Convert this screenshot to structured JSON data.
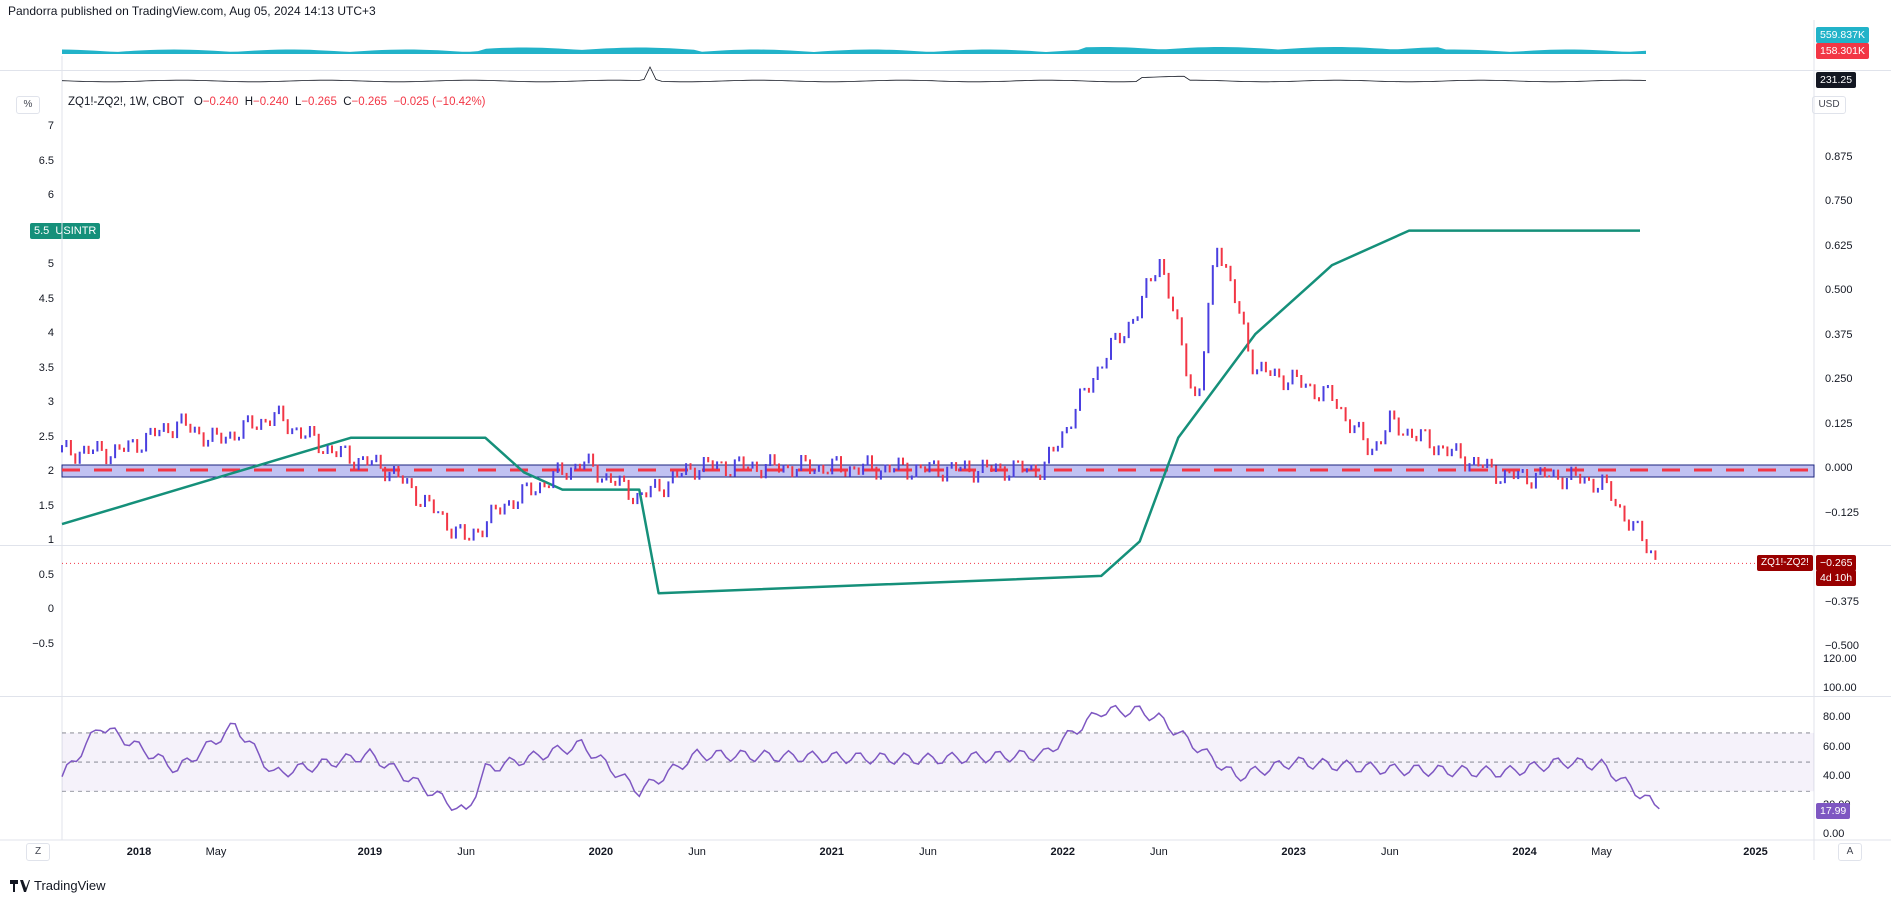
{
  "header": {
    "publisher_line": "Pandorra published on TradingView.com, Aug 05, 2024 14:13 UTC+3"
  },
  "symbol_line": {
    "name": "ZQ1!-ZQ2!, 1W, CBOT",
    "o_label": "O",
    "o": "−0.240",
    "h_label": "H",
    "h": "−0.240",
    "l_label": "L",
    "l": "−0.265",
    "c_label": "C",
    "c": "−0.265",
    "change": "−0.025 (−10.42%)"
  },
  "currency": "USD",
  "percent_btn": "%",
  "left_axis_ticks": [
    "7",
    "6.5",
    "6",
    "5.5",
    "5",
    "4.5",
    "4",
    "3.5",
    "3",
    "2.5",
    "2",
    "1.5",
    "1",
    "0.5",
    "0",
    "−0.5"
  ],
  "usintr_tag": {
    "value": "5.5",
    "label": "USINTR"
  },
  "right_axis_ticks": [
    "0.875",
    "0.750",
    "0.625",
    "0.500",
    "0.375",
    "0.250",
    "0.125",
    "0.000",
    "−0.125",
    "−0.375",
    "−0.500"
  ],
  "price_tag": {
    "symbol": "ZQ1!-ZQ2!",
    "value": "−0.265",
    "countdown": "4d 10h"
  },
  "volume_tags": {
    "v1": "559.837K",
    "v2": "158.301K",
    "v3": "231.25"
  },
  "rsi_axis_ticks": [
    "120.00",
    "100.00",
    "80.00",
    "60.00",
    "40.00",
    "20.00",
    "0.00"
  ],
  "rsi_tag": "17.99",
  "x_axis": [
    "2018",
    "May",
    "2019",
    "Jun",
    "2020",
    "Jun",
    "2021",
    "Jun",
    "2022",
    "Jun",
    "2023",
    "Jun",
    "2024",
    "May",
    "2025"
  ],
  "x_axis_bold": [
    "2018",
    "2019",
    "2020",
    "2021",
    "2022",
    "2023",
    "2024",
    "2025"
  ],
  "corner_left": "Z",
  "corner_right": "A",
  "footer": "TradingView",
  "colors": {
    "up": "#4a3fe0",
    "down": "#f23645",
    "usintr": "#15907a",
    "rsi": "#7e57c2",
    "band": "#8e8fe8"
  },
  "chart_data": {
    "type": "line",
    "usintr_series": {
      "name": "USINTR",
      "x": [
        "2017-09",
        "2017-12",
        "2018-03",
        "2018-06",
        "2018-09",
        "2018-12",
        "2019-07",
        "2019-08",
        "2019-09",
        "2019-11",
        "2020-03",
        "2020-04",
        "2022-03",
        "2022-05",
        "2022-06",
        "2022-07",
        "2022-09",
        "2022-11",
        "2023-02",
        "2023-03",
        "2023-05",
        "2023-07",
        "2024-07"
      ],
      "values": [
        1.25,
        1.5,
        1.75,
        2.0,
        2.25,
        2.5,
        2.5,
        2.25,
        2.0,
        1.75,
        1.75,
        0.25,
        0.5,
        1.0,
        1.75,
        2.5,
        3.25,
        4.0,
        4.75,
        5.0,
        5.25,
        5.5,
        5.5
      ]
    },
    "spread_series": {
      "name": "ZQ1!-ZQ2!",
      "x": [
        "2017-09",
        "2017-12",
        "2018-03",
        "2018-05",
        "2018-08",
        "2018-11",
        "2019-02",
        "2019-06",
        "2019-08",
        "2019-12",
        "2020-03",
        "2020-06",
        "2021-06",
        "2021-12",
        "2022-03",
        "2022-05",
        "2022-06",
        "2022-08",
        "2022-09",
        "2022-11",
        "2023-01",
        "2023-03",
        "2023-05",
        "2023-06",
        "2023-09",
        "2023-12",
        "2024-03",
        "2024-05",
        "2024-08"
      ],
      "values": [
        0.05,
        0.05,
        0.13,
        0.08,
        0.15,
        0.05,
        0.0,
        -0.2,
        -0.1,
        0.02,
        -0.08,
        0.01,
        0.0,
        0.0,
        0.3,
        0.45,
        0.6,
        0.17,
        0.65,
        0.28,
        0.25,
        0.2,
        0.05,
        0.13,
        0.05,
        -0.02,
        -0.02,
        -0.04,
        -0.265
      ]
    },
    "rsi_series": {
      "x": [
        "2017-09",
        "2017-11",
        "2018-03",
        "2018-06",
        "2018-08",
        "2019-01",
        "2019-06",
        "2019-07",
        "2019-12",
        "2020-03",
        "2020-06",
        "2021-06",
        "2021-12",
        "2022-03",
        "2022-05",
        "2022-06",
        "2022-08",
        "2022-10",
        "2023-01",
        "2023-06",
        "2023-12",
        "2024-03",
        "2024-05",
        "2024-08"
      ],
      "values": [
        40,
        75,
        45,
        75,
        42,
        55,
        15,
        45,
        62,
        30,
        55,
        52,
        55,
        85,
        85,
        80,
        60,
        40,
        50,
        45,
        43,
        50,
        48,
        17.99
      ]
    },
    "left_ylim": [
      -0.5,
      7
    ],
    "right_ylim": [
      -0.5,
      0.875
    ],
    "rsi_ylim": [
      0,
      120
    ],
    "rsi_bands": [
      30,
      50,
      70
    ],
    "x_range": [
      "2017-09",
      "2025-03"
    ],
    "grid": false
  }
}
